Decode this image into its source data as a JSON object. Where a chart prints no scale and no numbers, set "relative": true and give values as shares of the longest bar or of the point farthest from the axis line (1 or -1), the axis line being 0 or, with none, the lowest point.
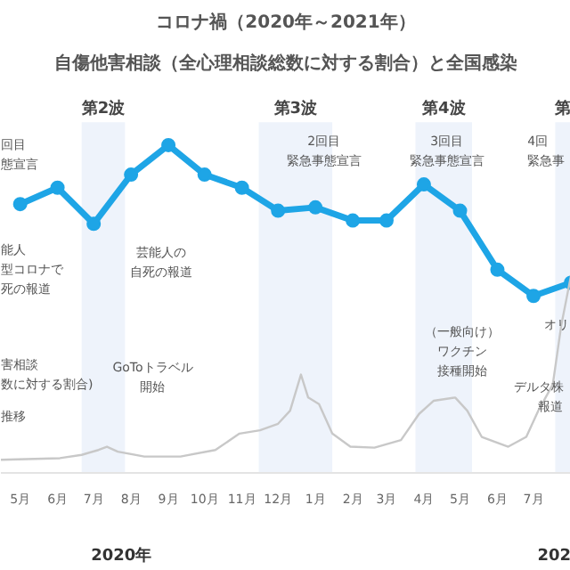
{
  "chart_data": {
    "type": "line",
    "title": "コロナ禍（2020年～2021年）",
    "subtitle": "自傷他害相談（全心理相談総数に対する割合）と全国感染",
    "relative": true,
    "grid": false,
    "xlim": [
      "2020-04-15",
      "2021-08-01"
    ],
    "xticks": [
      {
        "value": "2020-05-01",
        "label": "5月"
      },
      {
        "value": "2020-06-01",
        "label": "6月"
      },
      {
        "value": "2020-07-01",
        "label": "7月"
      },
      {
        "value": "2020-08-01",
        "label": "8月"
      },
      {
        "value": "2020-09-01",
        "label": "9月"
      },
      {
        "value": "2020-10-01",
        "label": "10月"
      },
      {
        "value": "2020-11-01",
        "label": "11月"
      },
      {
        "value": "2020-12-01",
        "label": "12月"
      },
      {
        "value": "2021-01-01",
        "label": "1月"
      },
      {
        "value": "2021-02-01",
        "label": "2月"
      },
      {
        "value": "2021-03-01",
        "label": "3月"
      },
      {
        "value": "2021-04-01",
        "label": "4月"
      },
      {
        "value": "2021-05-01",
        "label": "5月"
      },
      {
        "value": "2021-06-01",
        "label": "6月"
      },
      {
        "value": "2021-07-01",
        "label": "7月"
      }
    ],
    "series": [
      {
        "color": "#1ea5e6",
        "marker": "circle",
        "x": [
          "2020-05-01",
          "2020-06-01",
          "2020-07-01",
          "2020-08-01",
          "2020-09-01",
          "2020-10-01",
          "2020-11-01",
          "2020-12-01",
          "2021-01-01",
          "2021-02-01",
          "2021-03-01",
          "2021-04-01",
          "2021-05-01",
          "2021-06-01",
          "2021-07-01",
          "2021-08-01"
        ],
        "values": [
          0.82,
          0.87,
          0.76,
          0.91,
          1.0,
          0.91,
          0.87,
          0.8,
          0.81,
          0.77,
          0.77,
          0.88,
          0.8,
          0.62,
          0.54,
          0.58
        ]
      },
      {
        "color": "#c8c8c8",
        "x": [
          "2020-04-15",
          "2020-06-03",
          "2020-06-21",
          "2020-07-05",
          "2020-07-12",
          "2020-07-21",
          "2020-08-12",
          "2020-09-11",
          "2020-10-10",
          "2020-10-30",
          "2020-11-16",
          "2020-12-01",
          "2020-12-11",
          "2020-12-20",
          "2020-12-26",
          "2021-01-04",
          "2021-01-15",
          "2021-01-30",
          "2021-02-19",
          "2021-03-13",
          "2021-03-28",
          "2021-04-09",
          "2021-04-27",
          "2021-05-07",
          "2021-05-19",
          "2021-06-10",
          "2021-06-25",
          "2021-07-05",
          "2021-07-17",
          "2021-07-24",
          "2021-08-01"
        ],
        "values": [
          0.04,
          0.045,
          0.055,
          0.07,
          0.08,
          0.065,
          0.05,
          0.05,
          0.07,
          0.12,
          0.13,
          0.15,
          0.19,
          0.3,
          0.23,
          0.21,
          0.12,
          0.08,
          0.077,
          0.1,
          0.18,
          0.22,
          0.23,
          0.19,
          0.11,
          0.08,
          0.11,
          0.19,
          0.27,
          0.45,
          0.6
        ]
      }
    ],
    "bands": [
      {
        "axis": "x",
        "from": "2020-06-21",
        "to": "2020-07-27",
        "label": "第2波",
        "color": "#eef3fb"
      },
      {
        "axis": "x",
        "from": "2020-11-15",
        "to": "2021-01-15",
        "label": "第3波",
        "color": "#eef3fb"
      },
      {
        "axis": "x",
        "from": "2021-03-25",
        "to": "2021-05-11",
        "label": "第4波",
        "color": "#eef3fb"
      },
      {
        "axis": "x",
        "from": "2021-07-19",
        "to": "2021-08-01",
        "label": "第",
        "color": "#eef3fb"
      }
    ],
    "annotations": [
      "回目",
      "態宣言",
      "能人",
      "型コロナで",
      "死の報道",
      "芸能人の",
      "自死の報道",
      "GoToトラベル",
      "開始",
      "害相談",
      "数に対する割合)",
      "推移",
      "2回目",
      "緊急事態宣言",
      "3回目",
      "緊急事態宣言",
      "4回",
      "緊急事",
      "（一般向け）",
      "ワクチン",
      "接種開始",
      "オリ",
      "デルタ株",
      "報道",
      "2020年",
      "202"
    ]
  }
}
